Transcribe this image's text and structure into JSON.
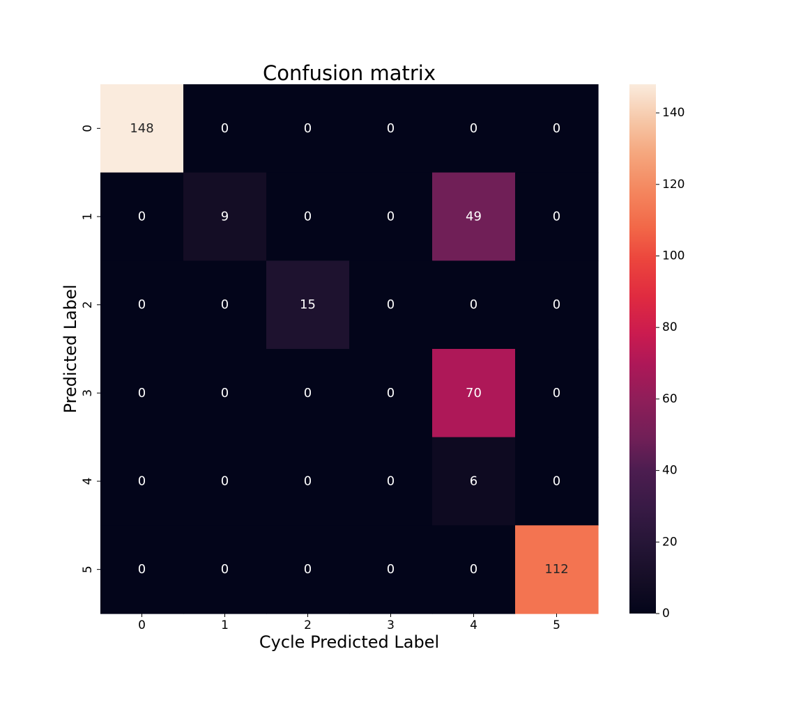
{
  "chart_data": {
    "type": "heatmap",
    "title": "Confusion matrix",
    "xlabel": "Cycle Predicted Label",
    "ylabel": "Predicted Label",
    "x_categories": [
      "0",
      "1",
      "2",
      "3",
      "4",
      "5"
    ],
    "y_categories": [
      "0",
      "1",
      "2",
      "3",
      "4",
      "5"
    ],
    "values": [
      [
        148,
        0,
        0,
        0,
        0,
        0
      ],
      [
        0,
        9,
        0,
        0,
        49,
        0
      ],
      [
        0,
        0,
        15,
        0,
        0,
        0
      ],
      [
        0,
        0,
        0,
        0,
        70,
        0
      ],
      [
        0,
        0,
        0,
        0,
        6,
        0
      ],
      [
        0,
        0,
        0,
        0,
        0,
        112
      ]
    ],
    "colormap": "rocket",
    "color_range": [
      0,
      148
    ],
    "colorbar": {
      "ticks": [
        "0",
        "20",
        "40",
        "60",
        "80",
        "100",
        "120",
        "140"
      ],
      "tick_values": [
        0,
        20,
        40,
        60,
        80,
        100,
        120,
        140
      ],
      "placement": "right"
    },
    "grid": false
  }
}
